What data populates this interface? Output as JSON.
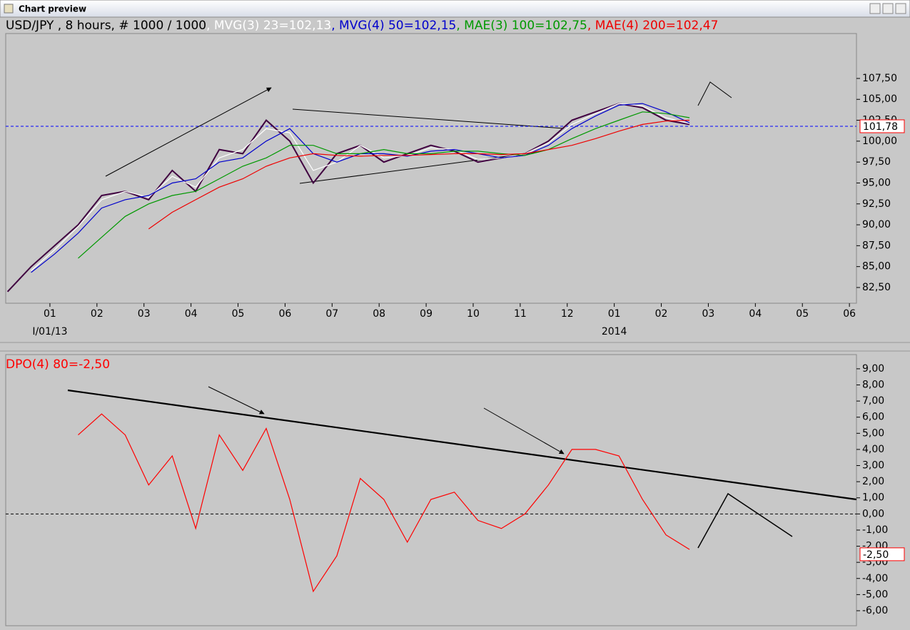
{
  "window": {
    "title": "Chart preview"
  },
  "chart_data": [
    {
      "type": "line",
      "legend_separator": ", ",
      "x": [
        -0.9,
        -0.4,
        0.1,
        0.6,
        1.1,
        1.6,
        2.1,
        2.6,
        3.1,
        3.6,
        4.1,
        4.6,
        5.1,
        5.6,
        6.1,
        6.6,
        7.1,
        7.6,
        8.1,
        8.6,
        9.1,
        9.6,
        10.1,
        10.6,
        11.1,
        11.6,
        12.1,
        12.6,
        13.1,
        13.6
      ],
      "series": [
        {
          "name": "USD/JPY , 8 hours, # 1000 / 1000",
          "color": "#400040",
          "values": [
            82,
            85,
            87.5,
            90,
            93.5,
            94,
            93,
            96.5,
            94,
            99,
            98.5,
            102.5,
            100,
            95,
            98.5,
            99.5,
            97.5,
            98.5,
            99.5,
            98.8,
            97.5,
            98,
            98.5,
            100,
            102.5,
            103.5,
            104.5,
            104,
            102.5,
            102
          ]
        },
        {
          "name": "MVG(3) 23=102,13",
          "color": "#ffffff",
          "values": [
            null,
            84.5,
            87,
            89.8,
            93,
            94,
            93.3,
            95.8,
            94.5,
            98,
            99,
            101.5,
            101,
            96.5,
            97.5,
            99.5,
            98,
            98.3,
            99.2,
            99,
            97.8,
            98,
            98.5,
            99.8,
            102,
            103.3,
            104.5,
            104.2,
            102.8,
            102.1
          ]
        },
        {
          "name": "MVG(4) 50=102,15",
          "color": "#0000cc",
          "values": [
            null,
            84.3,
            86.5,
            89,
            92,
            93,
            93.5,
            95,
            95.5,
            97.5,
            98,
            100,
            101.5,
            98.5,
            97.5,
            98.5,
            98.5,
            98.2,
            98.8,
            99,
            98.5,
            98,
            98.3,
            99.5,
            101.5,
            103,
            104.3,
            104.5,
            103.5,
            102.2
          ]
        },
        {
          "name": "MAE(3) 100=102,75",
          "color": "#009900",
          "values": [
            null,
            null,
            null,
            86,
            88.5,
            91,
            92.5,
            93.5,
            94,
            95.5,
            97,
            98,
            99.5,
            99.5,
            98.5,
            98.5,
            99,
            98.5,
            98.5,
            98.8,
            98.8,
            98.5,
            98.3,
            99,
            100.3,
            101.5,
            102.5,
            103.5,
            103.3,
            102.8
          ]
        },
        {
          "name": "MAE(4) 200=102,47",
          "color": "#ee0000",
          "values": [
            null,
            null,
            null,
            null,
            null,
            null,
            89.5,
            91.5,
            93,
            94.5,
            95.5,
            97,
            98,
            98.5,
            98.3,
            98.2,
            98.3,
            98.3,
            98.4,
            98.5,
            98.5,
            98.4,
            98.5,
            99,
            99.5,
            100.3,
            101.2,
            102,
            102.4,
            102.5
          ]
        }
      ],
      "xlim": [
        -0.94,
        17.15
      ],
      "xticks": [
        {
          "value": 0,
          "label": "01"
        },
        {
          "value": 1,
          "label": "02"
        },
        {
          "value": 2,
          "label": "03"
        },
        {
          "value": 3,
          "label": "04"
        },
        {
          "value": 4,
          "label": "05"
        },
        {
          "value": 5,
          "label": "06"
        },
        {
          "value": 6,
          "label": "07"
        },
        {
          "value": 7,
          "label": "08"
        },
        {
          "value": 8,
          "label": "09"
        },
        {
          "value": 9,
          "label": "10"
        },
        {
          "value": 10,
          "label": "11"
        },
        {
          "value": 11,
          "label": "12"
        },
        {
          "value": 12,
          "label": "01"
        },
        {
          "value": 13,
          "label": "02"
        },
        {
          "value": 14,
          "label": "03"
        },
        {
          "value": 15,
          "label": "04"
        },
        {
          "value": 16,
          "label": "05"
        },
        {
          "value": 17,
          "label": "06"
        }
      ],
      "annotations": [
        {
          "text": "I/01/13",
          "x": 0
        },
        {
          "text": "2014",
          "x": 12
        }
      ],
      "ylim": [
        80.62,
        112.87
      ],
      "yticks": [
        {
          "value": 82.5,
          "label": "82,50"
        },
        {
          "value": 85,
          "label": "85,00"
        },
        {
          "value": 87.5,
          "label": "87,50"
        },
        {
          "value": 90,
          "label": "90,00"
        },
        {
          "value": 92.5,
          "label": "92,50"
        },
        {
          "value": 95,
          "label": "95,00"
        },
        {
          "value": 97.5,
          "label": "97,50"
        },
        {
          "value": 100,
          "label": "100,00"
        },
        {
          "value": 102.5,
          "label": "102,50"
        },
        {
          "value": 105,
          "label": "105,00"
        },
        {
          "value": 107.5,
          "label": "107,50"
        }
      ],
      "hlines": [
        {
          "value": 101.78,
          "color": "#0000ff"
        }
      ],
      "value_marker": {
        "value": 101.78,
        "label": "101,78"
      }
    },
    {
      "type": "line",
      "x": [
        -0.9,
        -0.4,
        0.1,
        0.6,
        1.1,
        1.6,
        2.1,
        2.6,
        3.1,
        3.6,
        4.1,
        4.6,
        5.1,
        5.6,
        6.1,
        6.6,
        7.1,
        7.6,
        8.1,
        8.6,
        9.1,
        9.6,
        10.1,
        10.6,
        11.1,
        11.6,
        12.1,
        12.6,
        13.1,
        13.6
      ],
      "series": [
        {
          "name": "DPO(4) 80=-2,50",
          "color": "#ff0000",
          "values": [
            null,
            null,
            null,
            4.9,
            6.2,
            4.9,
            1.8,
            3.6,
            -0.9,
            4.9,
            2.7,
            5.3,
            0.9,
            -4.8,
            -2.6,
            2.2,
            0.9,
            -1.75,
            0.9,
            1.35,
            -0.4,
            -0.9,
            0,
            1.8,
            4,
            4,
            3.6,
            0.9,
            -1.3,
            -2.2
          ]
        }
      ],
      "xlim": [
        -0.94,
        17.15
      ],
      "ylim": [
        -6.93,
        9.88
      ],
      "yticks": [
        {
          "value": -6,
          "label": "-6,00"
        },
        {
          "value": -5,
          "label": "-5,00"
        },
        {
          "value": -4,
          "label": "-4,00"
        },
        {
          "value": -3,
          "label": "-3,00"
        },
        {
          "value": -2,
          "label": "-2,00"
        },
        {
          "value": -1,
          "label": "-1,00"
        },
        {
          "value": 0,
          "label": "0,00"
        },
        {
          "value": 1,
          "label": "1,00"
        },
        {
          "value": 2,
          "label": "2,00"
        },
        {
          "value": 3,
          "label": "3,00"
        },
        {
          "value": 4,
          "label": "4,00"
        },
        {
          "value": 5,
          "label": "5,00"
        },
        {
          "value": 6,
          "label": "6,00"
        },
        {
          "value": 7,
          "label": "7,00"
        },
        {
          "value": 8,
          "label": "8,00"
        },
        {
          "value": 9,
          "label": "9,00"
        }
      ],
      "hlines": [
        {
          "value": 0,
          "color": "#000000"
        }
      ],
      "value_marker": {
        "value": -2.5,
        "label": "-2,50"
      }
    }
  ]
}
